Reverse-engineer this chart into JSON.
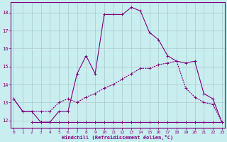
{
  "xlabel": "Windchill (Refroidissement éolien,°C)",
  "bg_color": "#c8eef0",
  "grid_color": "#b0c8c8",
  "line_color": "#800080",
  "x_ticks": [
    0,
    1,
    2,
    3,
    4,
    5,
    6,
    7,
    8,
    9,
    10,
    11,
    12,
    13,
    14,
    15,
    16,
    17,
    18,
    19,
    20,
    21,
    22,
    23
  ],
  "y_ticks": [
    12,
    13,
    14,
    15,
    16,
    17,
    18
  ],
  "ylim": [
    11.6,
    18.6
  ],
  "xlim": [
    -0.3,
    23.3
  ],
  "line1_x": [
    0,
    1,
    2,
    3,
    4,
    5,
    6,
    7,
    8,
    9,
    10,
    11,
    12,
    13,
    14,
    15,
    16,
    17,
    18,
    19,
    20,
    21,
    22,
    23
  ],
  "line1_y": [
    13.2,
    12.5,
    12.5,
    11.9,
    11.9,
    12.5,
    12.5,
    14.6,
    15.6,
    14.6,
    17.9,
    17.9,
    17.9,
    18.3,
    18.1,
    16.9,
    16.5,
    15.6,
    15.3,
    15.2,
    15.3,
    13.5,
    13.2,
    11.9
  ],
  "line2_x": [
    0,
    1,
    2,
    3,
    4,
    5,
    6,
    7,
    8,
    9,
    10,
    11,
    12,
    13,
    14,
    15,
    16,
    17,
    18,
    19,
    20,
    21,
    22,
    23
  ],
  "line2_y": [
    13.2,
    12.5,
    12.5,
    12.5,
    12.5,
    13.0,
    13.2,
    13.0,
    13.3,
    13.5,
    13.8,
    14.0,
    14.3,
    14.6,
    14.9,
    14.9,
    15.1,
    15.2,
    15.3,
    13.8,
    13.3,
    13.0,
    12.9,
    11.9
  ],
  "line3_x": [
    2,
    3,
    4,
    5,
    6,
    7,
    8,
    9,
    10,
    11,
    12,
    13,
    14,
    15,
    16,
    17,
    18,
    19,
    20,
    21,
    22,
    23
  ],
  "line3_y": [
    11.9,
    11.9,
    11.9,
    11.9,
    11.9,
    11.9,
    11.9,
    11.9,
    11.9,
    11.9,
    11.9,
    11.9,
    11.9,
    11.9,
    11.9,
    11.9,
    11.9,
    11.9,
    11.9,
    11.9,
    11.9,
    11.9
  ]
}
